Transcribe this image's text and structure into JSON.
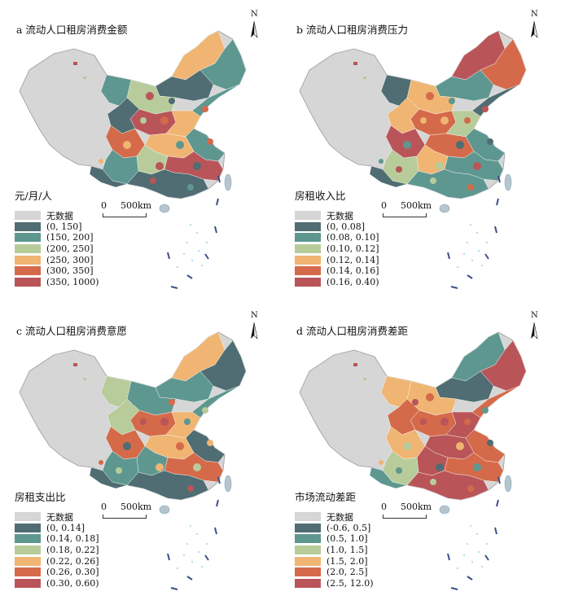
{
  "colors": {
    "nodata": "#d6d6d6",
    "c1": "#4f6d73",
    "c2": "#5e9790",
    "c3": "#b7cc9a",
    "c4": "#f0b572",
    "c5": "#d46a4a",
    "c6": "#b95559",
    "water": "#7fc3e0",
    "border": "#333333"
  },
  "scale_bar": {
    "zero": "0",
    "distance": "500km"
  },
  "north_letter": "N",
  "panels": [
    {
      "title": "a  流动人口租房消费金额",
      "legend_title": "元/月/人",
      "legend": [
        "无数据",
        "(0, 150]",
        "(150, 200]",
        "(200, 250]",
        "(250, 300]",
        "(300, 350]",
        "(350, 1000)"
      ]
    },
    {
      "title": "b  流动人口租房消费压力",
      "legend_title": "房租收入比",
      "legend": [
        "无数据",
        "(0, 0.08]",
        "(0.08, 0.10]",
        "(0.10, 0.12]",
        "(0.12, 0.14]",
        "(0.14, 0.16]",
        "(0.16, 0.40)"
      ]
    },
    {
      "title": "c  流动人口租房消费意愿",
      "legend_title": "房租支出比",
      "legend": [
        "无数据",
        "(0, 0.14]",
        "(0.14, 0.18]",
        "(0.18, 0.22]",
        "(0.22, 0.26]",
        "(0.26, 0.30]",
        "(0.30, 0.60)"
      ]
    },
    {
      "title": "d  流动人口租房消费差距",
      "legend_title": "市场流动差距",
      "legend": [
        "无数据",
        "(-0.6, 0.5]",
        "(0.5, 1.0]",
        "(1.0, 1.5]",
        "(1.5, 2.0]",
        "(2.0, 2.5]",
        "(2.5, 12.0)"
      ]
    }
  ]
}
